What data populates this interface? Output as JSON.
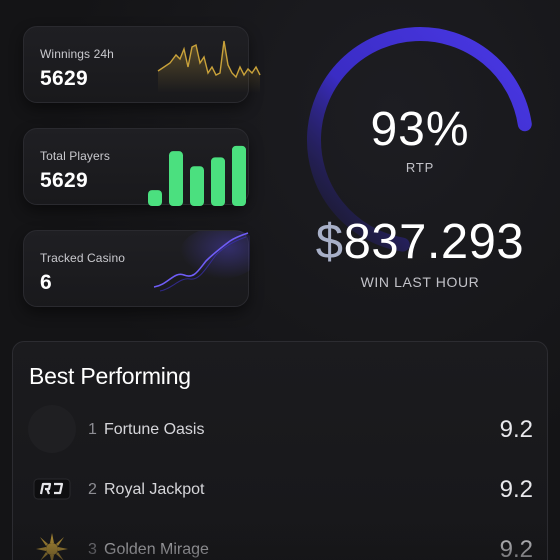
{
  "stats": [
    {
      "label": "Winnings 24h",
      "value": "5629"
    },
    {
      "label": "Total Players",
      "value": "5629"
    },
    {
      "label": "Tracked Casino",
      "value": "6"
    }
  ],
  "gauge": {
    "rtp_value": "93%",
    "rtp_label": "RTP",
    "progress_fraction": 0.7,
    "win_currency": "$",
    "win_amount": "837.293",
    "win_label": "WIN LAST HOUR"
  },
  "best_performing": {
    "title": "Best Performing",
    "items": [
      {
        "rank": "1",
        "name": "Fortune Oasis",
        "score": "9.2",
        "logo_icon": "blank-circle-icon"
      },
      {
        "rank": "2",
        "name": "Royal Jackpot",
        "score": "9.2",
        "logo_icon": "rj-monogram-icon"
      },
      {
        "rank": "3",
        "name": "Golden Mirage",
        "score": "9.2",
        "logo_icon": "golden-sun-icon"
      }
    ]
  },
  "colors": {
    "gold": "#c9a23a",
    "green": "#4be07f",
    "purple": "#5b4cf2",
    "background": "#141416"
  },
  "bar_chart_values": [
    0.18,
    0.62,
    0.45,
    0.55,
    0.68
  ]
}
